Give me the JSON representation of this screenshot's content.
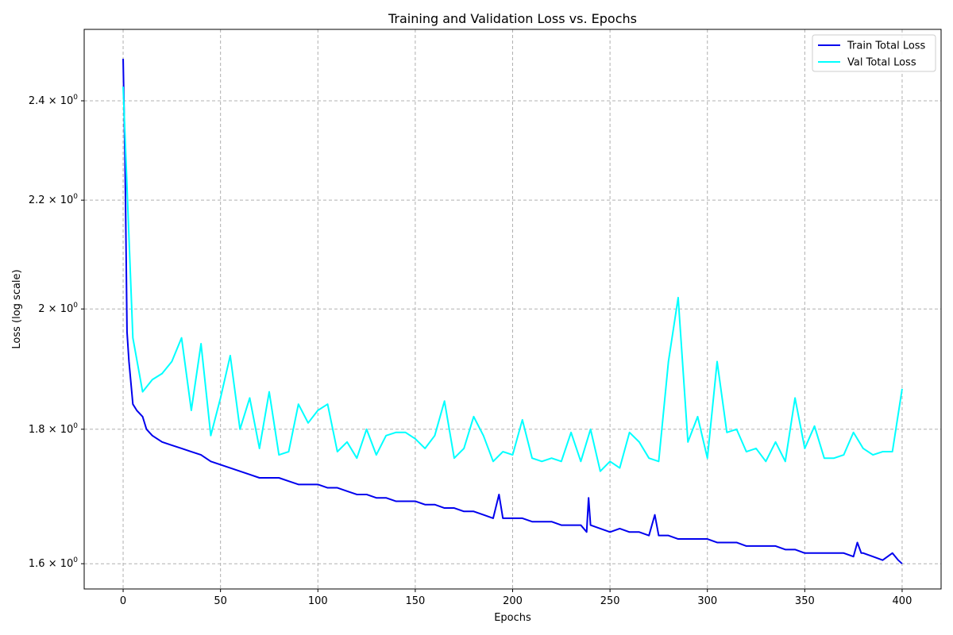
{
  "chart_data": {
    "type": "line",
    "title": "Training and Validation Loss vs. Epochs",
    "xlabel": "Epochs",
    "ylabel": "Loss (log scale)",
    "y_scale": "log",
    "xlim": [
      -20,
      420
    ],
    "ylim": [
      1.565,
      2.555
    ],
    "grid": true,
    "grid_style": "dashed",
    "legend_position": "top-right",
    "x_ticks": [
      0,
      50,
      100,
      150,
      200,
      250,
      300,
      350,
      400
    ],
    "y_ticks": [
      {
        "value": 1.6,
        "mantissa": "1.6",
        "base": "10",
        "exp": "0"
      },
      {
        "value": 1.8,
        "mantissa": "1.8",
        "base": "10",
        "exp": "0"
      },
      {
        "value": 2.0,
        "mantissa": "2",
        "base": "10",
        "exp": "0"
      },
      {
        "value": 2.2,
        "mantissa": "2.2",
        "base": "10",
        "exp": "0"
      },
      {
        "value": 2.4,
        "mantissa": "2.4",
        "base": "10",
        "exp": "0"
      }
    ],
    "series": [
      {
        "name": "Train Total Loss",
        "color": "#0000ee",
        "x": [
          0,
          1,
          2,
          3,
          5,
          7,
          10,
          12,
          15,
          20,
          25,
          30,
          35,
          40,
          45,
          50,
          55,
          60,
          65,
          70,
          75,
          80,
          85,
          90,
          95,
          100,
          105,
          110,
          115,
          120,
          125,
          130,
          135,
          140,
          145,
          150,
          155,
          160,
          165,
          170,
          175,
          180,
          185,
          190,
          193,
          195,
          200,
          205,
          210,
          215,
          220,
          225,
          230,
          235,
          238,
          239,
          240,
          245,
          250,
          255,
          260,
          265,
          270,
          273,
          275,
          280,
          285,
          290,
          295,
          300,
          305,
          310,
          315,
          320,
          325,
          330,
          335,
          340,
          345,
          350,
          355,
          360,
          365,
          370,
          375,
          377,
          379,
          380,
          385,
          390,
          395,
          398,
          400
        ],
        "y": [
          2.49,
          2.27,
          1.96,
          1.91,
          1.84,
          1.83,
          1.82,
          1.8,
          1.79,
          1.78,
          1.775,
          1.77,
          1.765,
          1.76,
          1.75,
          1.745,
          1.74,
          1.735,
          1.73,
          1.725,
          1.725,
          1.725,
          1.72,
          1.715,
          1.715,
          1.715,
          1.71,
          1.71,
          1.705,
          1.7,
          1.7,
          1.695,
          1.695,
          1.69,
          1.69,
          1.69,
          1.685,
          1.685,
          1.68,
          1.68,
          1.675,
          1.675,
          1.67,
          1.665,
          1.7,
          1.665,
          1.665,
          1.665,
          1.66,
          1.66,
          1.66,
          1.655,
          1.655,
          1.655,
          1.645,
          1.695,
          1.655,
          1.65,
          1.645,
          1.65,
          1.645,
          1.645,
          1.64,
          1.67,
          1.64,
          1.64,
          1.635,
          1.635,
          1.635,
          1.635,
          1.63,
          1.63,
          1.63,
          1.625,
          1.625,
          1.625,
          1.625,
          1.62,
          1.62,
          1.615,
          1.615,
          1.615,
          1.615,
          1.615,
          1.61,
          1.63,
          1.615,
          1.615,
          1.61,
          1.605,
          1.615,
          1.605,
          1.6
        ]
      },
      {
        "name": "Val Total Loss",
        "color": "#00ffff",
        "x": [
          0,
          5,
          10,
          15,
          20,
          25,
          30,
          35,
          40,
          45,
          50,
          55,
          60,
          65,
          70,
          75,
          80,
          85,
          90,
          95,
          100,
          105,
          110,
          115,
          120,
          125,
          130,
          135,
          140,
          145,
          150,
          155,
          160,
          165,
          170,
          175,
          180,
          185,
          190,
          195,
          200,
          205,
          210,
          215,
          220,
          225,
          230,
          235,
          240,
          245,
          250,
          255,
          260,
          265,
          270,
          275,
          280,
          285,
          290,
          295,
          300,
          305,
          310,
          315,
          320,
          325,
          330,
          335,
          340,
          345,
          350,
          355,
          360,
          365,
          370,
          375,
          380,
          385,
          390,
          395,
          400
        ],
        "y": [
          2.43,
          1.95,
          1.86,
          1.88,
          1.89,
          1.91,
          1.95,
          1.83,
          1.94,
          1.79,
          1.85,
          1.92,
          1.8,
          1.85,
          1.77,
          1.86,
          1.76,
          1.765,
          1.84,
          1.81,
          1.83,
          1.84,
          1.765,
          1.78,
          1.755,
          1.8,
          1.76,
          1.79,
          1.795,
          1.795,
          1.785,
          1.77,
          1.79,
          1.845,
          1.755,
          1.77,
          1.82,
          1.79,
          1.75,
          1.765,
          1.76,
          1.815,
          1.755,
          1.75,
          1.755,
          1.75,
          1.795,
          1.75,
          1.8,
          1.735,
          1.75,
          1.74,
          1.795,
          1.78,
          1.755,
          1.75,
          1.91,
          2.02,
          1.78,
          1.82,
          1.755,
          1.91,
          1.795,
          1.8,
          1.765,
          1.77,
          1.75,
          1.78,
          1.75,
          1.85,
          1.77,
          1.805,
          1.755,
          1.755,
          1.76,
          1.795,
          1.77,
          1.76,
          1.765,
          1.765,
          1.865
        ]
      }
    ]
  }
}
